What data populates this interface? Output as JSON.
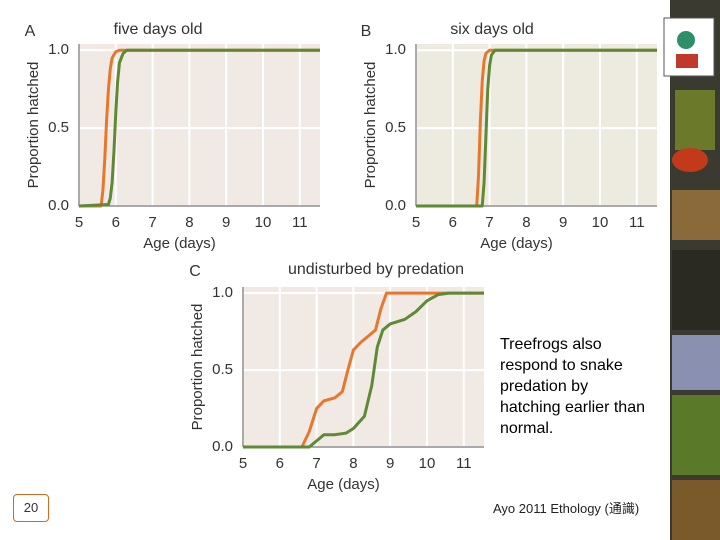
{
  "chart_data": [
    {
      "type": "line",
      "panel": "A",
      "title": "five days old",
      "xlabel": "Age (days)",
      "ylabel": "Proportion hatched",
      "xlim": [
        5,
        11.55
      ],
      "ylim": [
        0,
        1.04
      ],
      "xticks": [
        5,
        6,
        7,
        8,
        9,
        10,
        11
      ],
      "yticks": [
        {
          "value": 0,
          "label": "0.0"
        },
        {
          "value": 0.5,
          "label": "0.5"
        },
        {
          "value": 1,
          "label": "1.0"
        }
      ],
      "grid": true,
      "background": "#f1e9e4",
      "series": [
        {
          "color": "#e8772e",
          "x": [
            5.0,
            5.6,
            5.65,
            5.7,
            5.75,
            5.8,
            5.85,
            5.9,
            6.0,
            6.1,
            11.55
          ],
          "values": [
            0,
            0,
            0.1,
            0.3,
            0.55,
            0.75,
            0.88,
            0.95,
            0.99,
            1,
            1
          ]
        },
        {
          "color": "#5e8a36",
          "x": [
            5.0,
            5.8,
            5.85,
            5.9,
            5.95,
            6.0,
            6.05,
            6.1,
            6.2,
            6.3,
            11.55
          ],
          "values": [
            0,
            0.01,
            0.05,
            0.15,
            0.35,
            0.6,
            0.8,
            0.92,
            0.98,
            1,
            1
          ]
        }
      ]
    },
    {
      "type": "line",
      "panel": "B",
      "title": "six days old",
      "xlabel": "Age (days)",
      "ylabel": "Proportion hatched",
      "xlim": [
        5,
        11.55
      ],
      "ylim": [
        0,
        1.04
      ],
      "xticks": [
        5,
        6,
        7,
        8,
        9,
        10,
        11
      ],
      "yticks": [
        {
          "value": 0,
          "label": "0.0"
        },
        {
          "value": 0.5,
          "label": "0.5"
        },
        {
          "value": 1,
          "label": "1.0"
        }
      ],
      "grid": true,
      "background": "#edebdf",
      "series": [
        {
          "color": "#e8772e",
          "x": [
            5.0,
            6.65,
            6.7,
            6.75,
            6.8,
            6.85,
            6.9,
            7.0,
            11.55
          ],
          "values": [
            0,
            0,
            0.2,
            0.55,
            0.8,
            0.93,
            0.98,
            1,
            1
          ]
        },
        {
          "color": "#5e8a36",
          "x": [
            5.0,
            6.8,
            6.85,
            6.9,
            6.95,
            7.0,
            7.05,
            7.15,
            11.55
          ],
          "values": [
            0,
            0,
            0.15,
            0.45,
            0.75,
            0.9,
            0.97,
            1,
            1
          ]
        }
      ]
    },
    {
      "type": "line",
      "panel": "C",
      "title": "undisturbed by predation",
      "xlabel": "Age (days)",
      "ylabel": "Proportion hatched",
      "xlim": [
        5,
        11.55
      ],
      "ylim": [
        0,
        1.04
      ],
      "xticks": [
        5,
        6,
        7,
        8,
        9,
        10,
        11
      ],
      "yticks": [
        {
          "value": 0,
          "label": "0.0"
        },
        {
          "value": 0.5,
          "label": "0.5"
        },
        {
          "value": 1,
          "label": "1.0"
        }
      ],
      "grid": true,
      "background": "#f1e9e4",
      "series": [
        {
          "color": "#e8772e",
          "x": [
            5.0,
            6.6,
            6.8,
            7.0,
            7.2,
            7.5,
            7.7,
            7.85,
            8.0,
            8.2,
            8.4,
            8.6,
            8.75,
            8.9,
            9.1,
            11.55
          ],
          "values": [
            0,
            0,
            0.1,
            0.25,
            0.3,
            0.32,
            0.36,
            0.5,
            0.63,
            0.68,
            0.72,
            0.76,
            0.9,
            1,
            1,
            1
          ]
        },
        {
          "color": "#5e8a36",
          "x": [
            5.0,
            6.8,
            7.0,
            7.2,
            7.5,
            7.8,
            8.0,
            8.3,
            8.5,
            8.65,
            8.8,
            9.0,
            9.4,
            9.7,
            10.0,
            10.3,
            10.6,
            11.55
          ],
          "values": [
            0,
            0,
            0.04,
            0.08,
            0.08,
            0.09,
            0.12,
            0.2,
            0.4,
            0.65,
            0.76,
            0.8,
            0.83,
            0.88,
            0.95,
            0.99,
            1,
            1
          ]
        }
      ]
    }
  ],
  "slide": {
    "body": "Treefrogs also respond to snake predation by hatching earlier than normal.",
    "page_number": "20",
    "citation": "Ayo 2011 Ethology (通識)"
  }
}
